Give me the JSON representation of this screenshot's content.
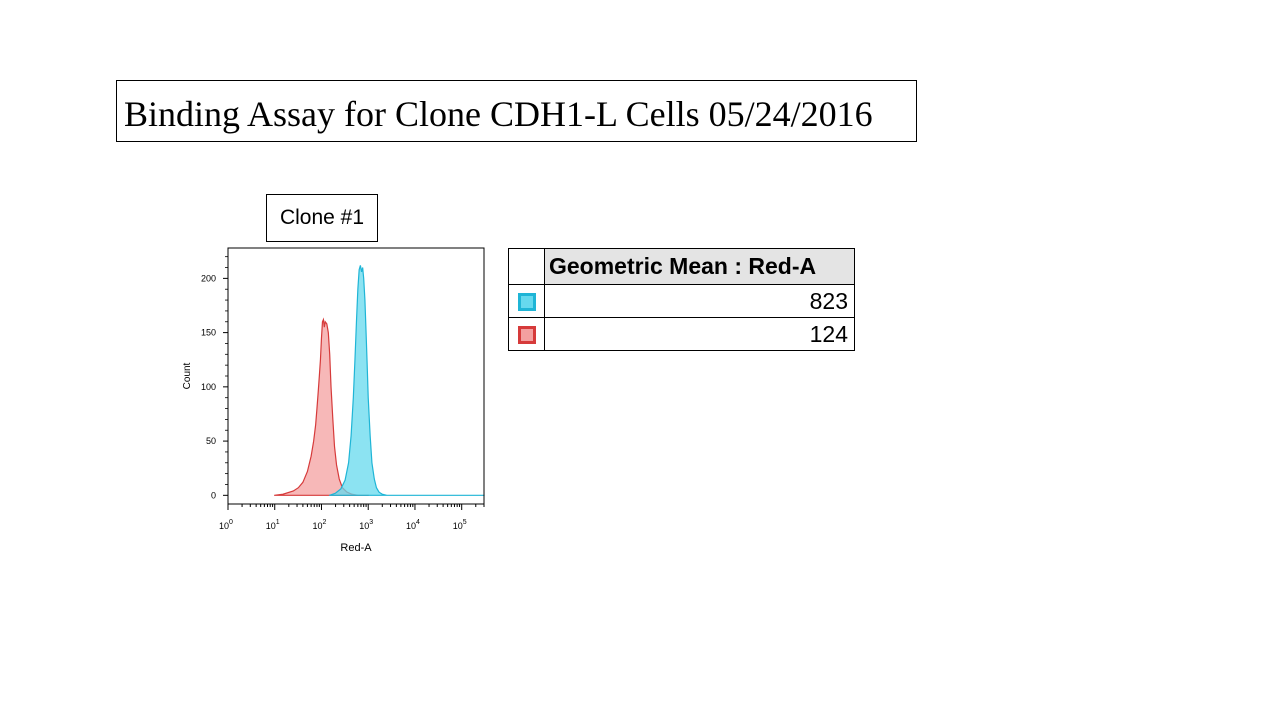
{
  "title": "Binding Assay for Clone CDH1-L Cells 05/24/2016",
  "panel_label": "Clone #1",
  "stats_table": {
    "header": "Geometric Mean : Red-A",
    "rows": [
      {
        "swatch_color": "#66d9ee",
        "border_color": "#1fb5d6",
        "value": "823"
      },
      {
        "swatch_color": "#f4a0a0",
        "border_color": "#d63a3a",
        "value": "124"
      }
    ]
  },
  "chart_data": {
    "type": "area",
    "xlabel": "Red-A",
    "ylabel": "Count",
    "x_scale": "log",
    "xlim": [
      1,
      300000
    ],
    "ylim": [
      -8,
      228
    ],
    "y_ticks": [
      0,
      50,
      100,
      150,
      200
    ],
    "x_tick_labels": [
      {
        "base": "10",
        "exp": "0",
        "value": 1
      },
      {
        "base": "10",
        "exp": "1",
        "value": 10
      },
      {
        "base": "10",
        "exp": "2",
        "value": 100
      },
      {
        "base": "10",
        "exp": "3",
        "value": 1000
      },
      {
        "base": "10",
        "exp": "4",
        "value": 10000
      },
      {
        "base": "10",
        "exp": "5",
        "value": 100000
      }
    ],
    "series": [
      {
        "fill": "#f4a0a0",
        "stroke": "#d63a3a",
        "x": [
          10,
          15,
          25,
          32,
          40,
          50,
          60,
          68,
          75,
          80,
          85,
          90,
          95,
          100,
          105,
          110,
          115,
          120,
          130,
          140,
          150,
          160,
          175,
          190,
          210,
          240,
          280,
          350,
          450,
          600,
          1000
        ],
        "y": [
          0,
          1,
          4,
          7,
          12,
          22,
          36,
          50,
          65,
          80,
          95,
          110,
          125,
          145,
          160,
          162,
          155,
          160,
          158,
          150,
          130,
          100,
          70,
          45,
          28,
          15,
          7,
          3,
          1,
          0,
          0
        ]
      },
      {
        "fill": "#66d9ee",
        "stroke": "#1fb5d6",
        "x": [
          150,
          200,
          260,
          320,
          380,
          430,
          480,
          520,
          560,
          600,
          640,
          680,
          720,
          760,
          800,
          850,
          900,
          950,
          1000,
          1100,
          1200,
          1350,
          1500,
          1700,
          2000,
          2500,
          3200,
          5000,
          300000
        ],
        "y": [
          0,
          2,
          6,
          14,
          30,
          55,
          90,
          125,
          160,
          190,
          208,
          212,
          206,
          210,
          200,
          180,
          150,
          120,
          90,
          55,
          30,
          15,
          7,
          3,
          1,
          0,
          0,
          0,
          0
        ]
      }
    ],
    "grid": false
  }
}
